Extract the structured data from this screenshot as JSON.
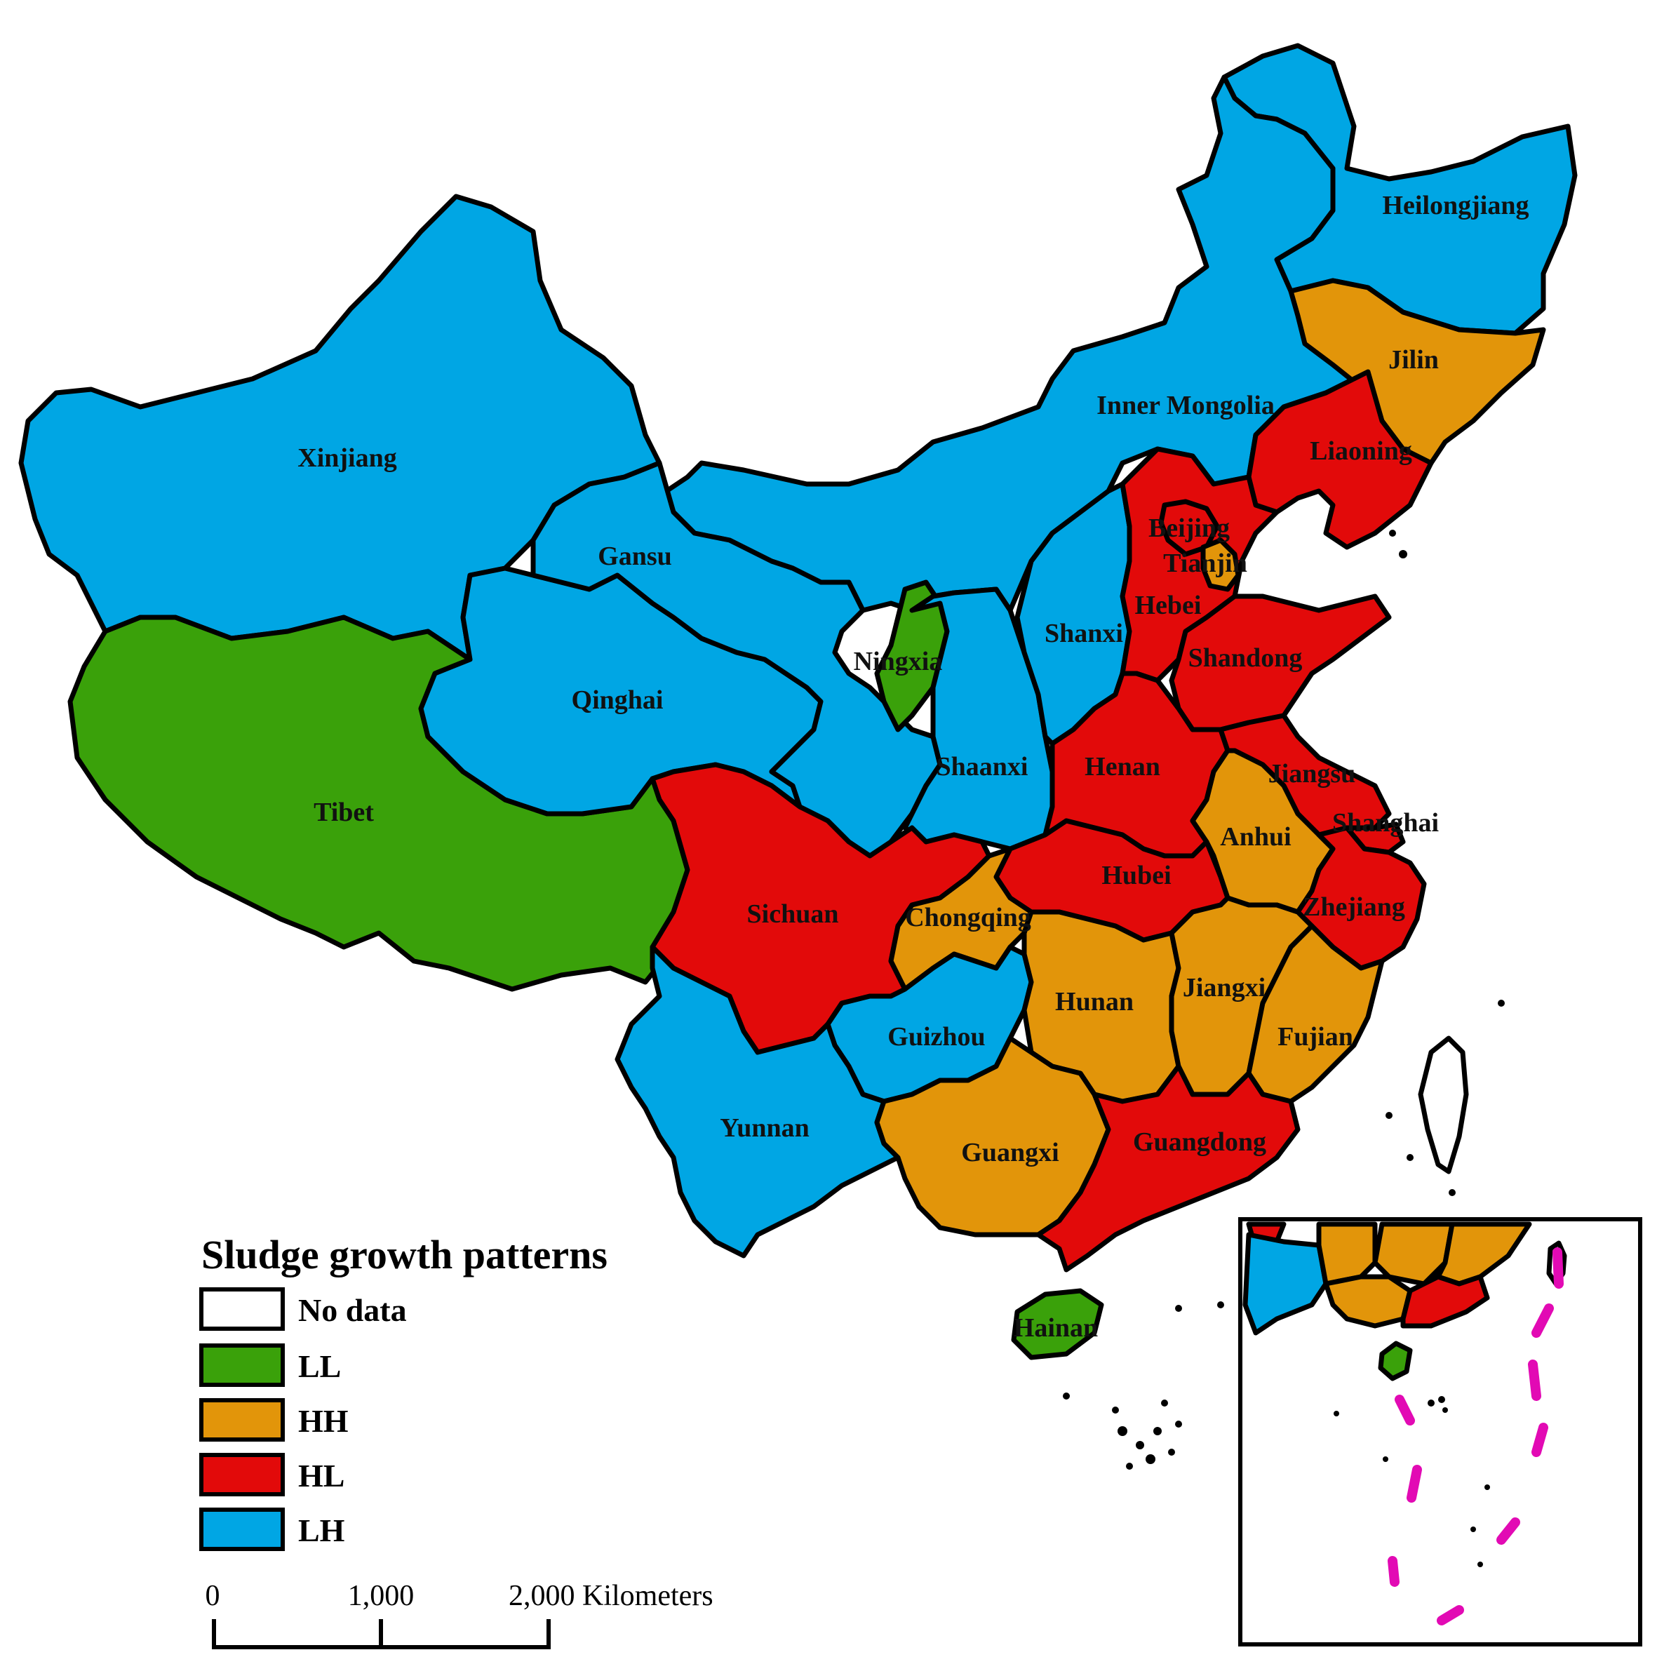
{
  "legend": {
    "title": "Sludge growth patterns",
    "items": [
      {
        "label": "No data",
        "color": "#ffffff"
      },
      {
        "label": "LL",
        "color": "#3aa10a"
      },
      {
        "label": "HH",
        "color": "#e2950a"
      },
      {
        "label": "HL",
        "color": "#e20a0a"
      },
      {
        "label": "LH",
        "color": "#00a6e4"
      }
    ]
  },
  "scale_bar": {
    "ticks": [
      "0",
      "1,000",
      "2,000 Kilometers"
    ]
  },
  "colors": {
    "LL": "#3aa10a",
    "HH": "#e2950a",
    "HL": "#e20a0a",
    "LH": "#00a6e4",
    "dash_line": "#e20ab4"
  },
  "provinces": [
    {
      "name": "Heilongjiang",
      "class": "LH"
    },
    {
      "name": "Jilin",
      "class": "HH"
    },
    {
      "name": "Liaoning",
      "class": "HL"
    },
    {
      "name": "Inner Mongolia",
      "class": "LH"
    },
    {
      "name": "Xinjiang",
      "class": "LH"
    },
    {
      "name": "Gansu",
      "class": "LH"
    },
    {
      "name": "Qinghai",
      "class": "LH"
    },
    {
      "name": "Tibet",
      "class": "LL"
    },
    {
      "name": "Ningxia",
      "class": "LL"
    },
    {
      "name": "Shaanxi",
      "class": "LH"
    },
    {
      "name": "Shanxi",
      "class": "LH"
    },
    {
      "name": "Beijing",
      "class": "HL"
    },
    {
      "name": "Tianjin",
      "class": "HH"
    },
    {
      "name": "Hebei",
      "class": "HL"
    },
    {
      "name": "Shandong",
      "class": "HL"
    },
    {
      "name": "Henan",
      "class": "HL"
    },
    {
      "name": "Jiangsu",
      "class": "HL"
    },
    {
      "name": "Shanghai",
      "class": "HL"
    },
    {
      "name": "Anhui",
      "class": "HH"
    },
    {
      "name": "Hubei",
      "class": "HL"
    },
    {
      "name": "Zhejiang",
      "class": "HL"
    },
    {
      "name": "Sichuan",
      "class": "HL"
    },
    {
      "name": "Chongqing",
      "class": "HH"
    },
    {
      "name": "Hunan",
      "class": "HH"
    },
    {
      "name": "Jiangxi",
      "class": "HH"
    },
    {
      "name": "Fujian",
      "class": "HH"
    },
    {
      "name": "Guizhou",
      "class": "LH"
    },
    {
      "name": "Yunnan",
      "class": "LH"
    },
    {
      "name": "Guangxi",
      "class": "HH"
    },
    {
      "name": "Guangdong",
      "class": "HL"
    },
    {
      "name": "Hainan",
      "class": "LL"
    }
  ]
}
